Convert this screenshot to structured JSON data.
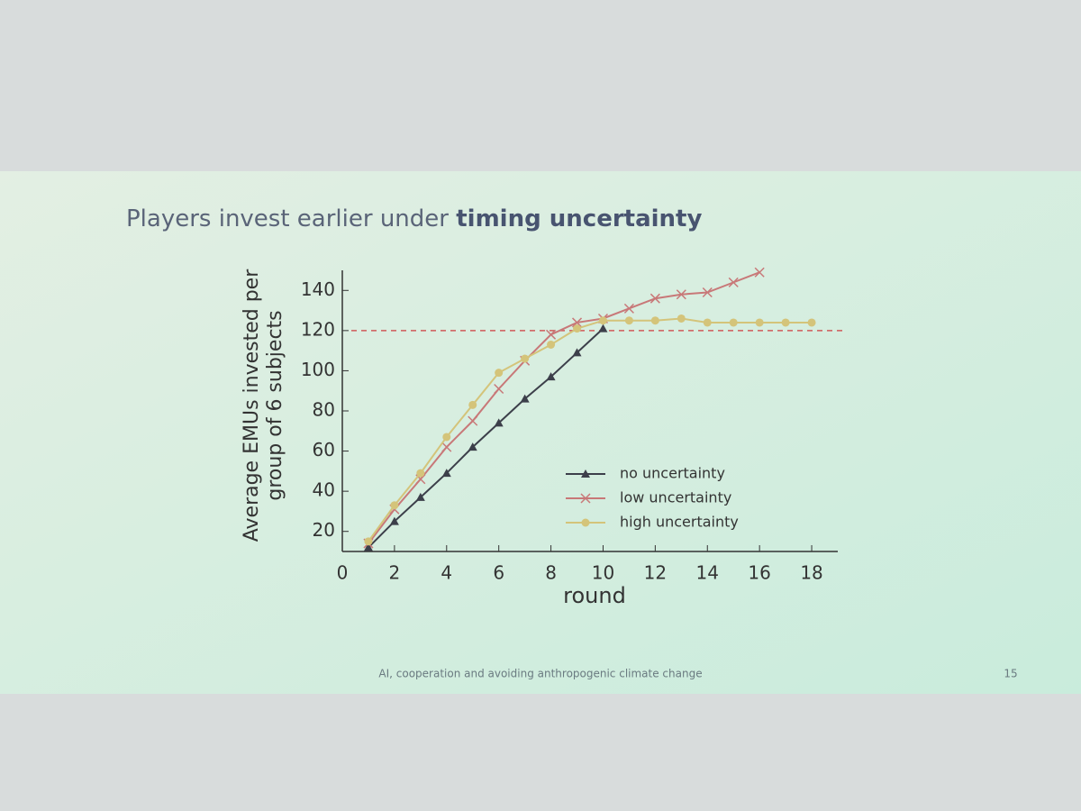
{
  "chart_data": {
    "type": "line",
    "title": {
      "text": "Players invest earlier under",
      "emphasis": "timing uncertainty"
    },
    "x_label": "round",
    "y_label": [
      "Average EMUs invested per",
      "group of 6 subjects"
    ],
    "footer": "AI, cooperation and avoiding anthropogenic climate change",
    "page_number": "15",
    "xlim": [
      0,
      19
    ],
    "xticks": [
      0,
      2,
      4,
      6,
      8,
      10,
      12,
      14,
      16,
      18
    ],
    "ylim": [
      10,
      150
    ],
    "yticks": [
      20,
      40,
      60,
      80,
      100,
      120,
      140
    ],
    "reference_line": {
      "value": 120,
      "color": "#d05a5a"
    },
    "legend": "lower right",
    "series": [
      {
        "name": "no uncertainty",
        "color": "#3c3f4a",
        "marker": "triangle",
        "x": [
          1,
          2,
          3,
          4,
          5,
          6,
          7,
          8,
          9,
          10
        ],
        "values": [
          12,
          25,
          37,
          49,
          62,
          74,
          86,
          97,
          109,
          121
        ]
      },
      {
        "name": "low uncertainty",
        "color": "#c87878",
        "marker": "x",
        "x": [
          1,
          2,
          3,
          4,
          5,
          6,
          7,
          8,
          9,
          10,
          11,
          12,
          13,
          14,
          15,
          16
        ],
        "values": [
          14,
          31,
          46,
          62,
          75,
          91,
          105,
          118,
          124,
          126,
          131,
          136,
          138,
          139,
          144,
          149
        ]
      },
      {
        "name": "high uncertainty",
        "color": "#d4c47a",
        "marker": "circle",
        "x": [
          1,
          2,
          3,
          4,
          5,
          6,
          7,
          8,
          9,
          10,
          11,
          12,
          13,
          14,
          15,
          16,
          17,
          18
        ],
        "values": [
          15,
          33,
          49,
          67,
          83,
          99,
          106,
          113,
          121,
          125,
          125,
          125,
          126,
          124,
          124,
          124,
          124,
          124
        ]
      }
    ]
  }
}
